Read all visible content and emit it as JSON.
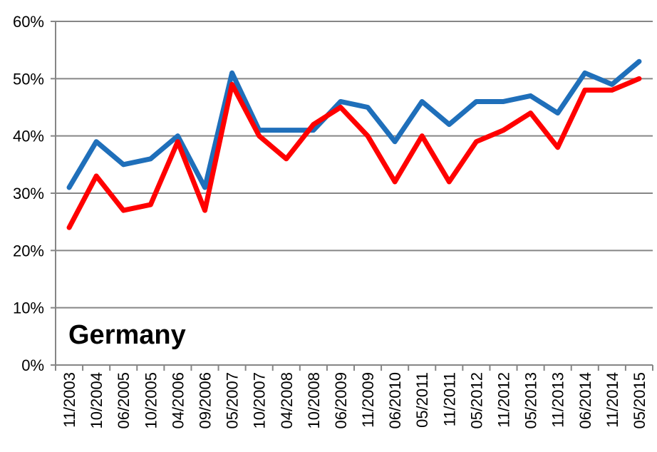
{
  "chart_data": {
    "type": "line",
    "annotation": "Germany",
    "categories": [
      "11/2003",
      "10/2004",
      "06/2005",
      "10/2005",
      "04/2006",
      "09/2006",
      "05/2007",
      "10/2007",
      "04/2008",
      "10/2008",
      "06/2009",
      "11/2009",
      "06/2010",
      "05/2011",
      "11/2011",
      "05/2012",
      "11/2012",
      "05/2013",
      "11/2013",
      "06/2014",
      "11/2014",
      "05/2015"
    ],
    "series": [
      {
        "color": "#1f6fba",
        "values": [
          31,
          39,
          35,
          36,
          40,
          31,
          51,
          41,
          41,
          41,
          46,
          45,
          39,
          46,
          42,
          46,
          46,
          47,
          44,
          51,
          49,
          53
        ]
      },
      {
        "color": "#ff0000",
        "values": [
          24,
          33,
          27,
          28,
          39,
          27,
          49,
          40,
          36,
          42,
          45,
          40,
          32,
          40,
          32,
          39,
          41,
          44,
          38,
          48,
          48,
          50
        ]
      }
    ],
    "ylim": [
      0,
      60
    ],
    "yticks": [
      {
        "value": 0,
        "label": "0%"
      },
      {
        "value": 10,
        "label": "10%"
      },
      {
        "value": 20,
        "label": "20%"
      },
      {
        "value": 30,
        "label": "30%"
      },
      {
        "value": 40,
        "label": "40%"
      },
      {
        "value": 50,
        "label": "50%"
      },
      {
        "value": 60,
        "label": "60%"
      }
    ],
    "grid": true
  }
}
